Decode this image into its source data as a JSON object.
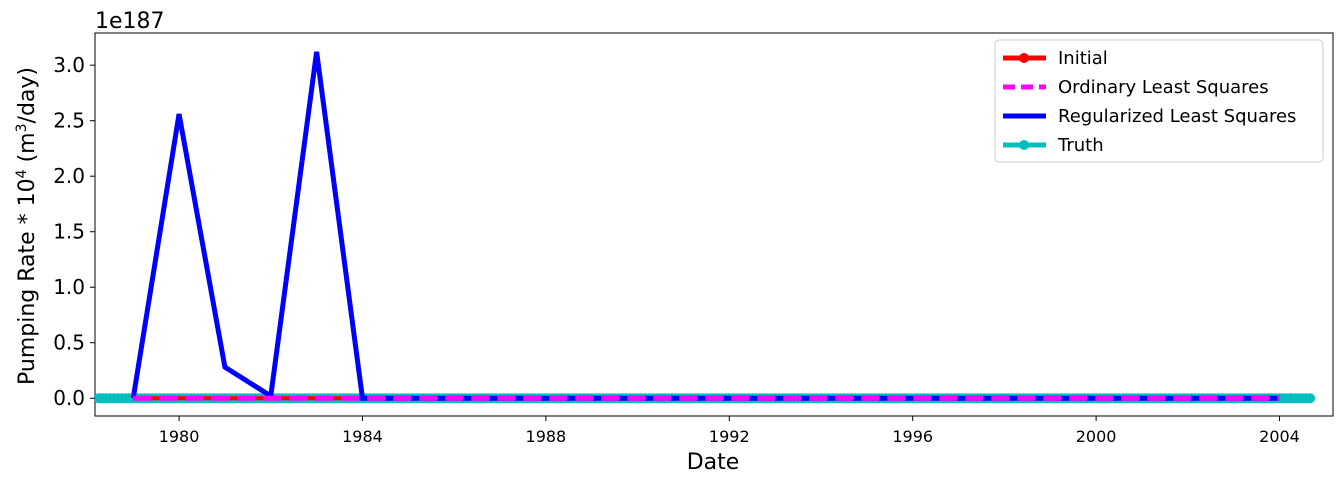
{
  "chart_data": {
    "type": "line",
    "xlabel": "Date",
    "ylabel_pre": "Pumping Rate * 10",
    "ylabel_sup1": "4",
    "ylabel_mid": " (m",
    "ylabel_sup2": "3",
    "ylabel_post": "/day)",
    "y_offset_text": "1e187",
    "xlim": [
      "1978-03",
      "2005-03"
    ],
    "ylim": [
      -0.16,
      3.29
    ],
    "x_ticks": [
      "1980",
      "1984",
      "1988",
      "1992",
      "1996",
      "2000",
      "2004"
    ],
    "y_ticks": [
      "0.0",
      "0.5",
      "1.0",
      "1.5",
      "2.0",
      "2.5",
      "3.0"
    ],
    "legend_position": "upper right",
    "series": [
      {
        "name": "Initial",
        "color": "#ff0000",
        "style": "solid-marker",
        "x": [
          "1979",
          "1980",
          "1981",
          "1982",
          "1983",
          "1984",
          "1985",
          "1986",
          "1987",
          "1988",
          "1989",
          "1990",
          "1991",
          "1992",
          "1993",
          "1994",
          "1995",
          "1996",
          "1997",
          "1998",
          "1999",
          "2000",
          "2001",
          "2002",
          "2003",
          "2004"
        ],
        "values": [
          0,
          0,
          0,
          0,
          0,
          0,
          0,
          0,
          0,
          0,
          0,
          0,
          0,
          0,
          0,
          0,
          0,
          0,
          0,
          0,
          0,
          0,
          0,
          0,
          0,
          0
        ]
      },
      {
        "name": "Ordinary Least Squares",
        "color": "#ff00ff",
        "style": "dashed",
        "x": [
          "1979",
          "1980",
          "1981",
          "1982",
          "1983",
          "1984",
          "1985",
          "1986",
          "1987",
          "1988",
          "1989",
          "1990",
          "1991",
          "1992",
          "1993",
          "1994",
          "1995",
          "1996",
          "1997",
          "1998",
          "1999",
          "2000",
          "2001",
          "2002",
          "2003",
          "2004"
        ],
        "values": [
          0,
          0,
          0,
          0,
          0,
          0,
          0,
          0,
          0,
          0,
          0,
          0,
          0,
          0,
          0,
          0,
          0,
          0,
          0,
          0,
          0,
          0,
          0,
          0,
          0,
          0
        ]
      },
      {
        "name": "Regularized Least Squares",
        "color": "#0000ff",
        "style": "solid",
        "x": [
          "1979",
          "1980",
          "1981",
          "1982",
          "1983",
          "1984",
          "1985",
          "1986",
          "1987",
          "1988",
          "1989",
          "1990",
          "1991",
          "1992",
          "1993",
          "1994",
          "1995",
          "1996",
          "1997",
          "1998",
          "1999",
          "2000",
          "2001",
          "2002",
          "2003",
          "2004"
        ],
        "values": [
          0,
          2.56,
          0.28,
          0.02,
          3.12,
          0,
          0,
          0,
          0,
          0,
          0,
          0,
          0,
          0,
          0,
          0,
          0,
          0,
          0,
          0,
          0,
          0,
          0,
          0,
          0,
          0
        ]
      },
      {
        "name": "Truth",
        "color": "#00bfbf",
        "style": "solid-marker",
        "x_start": "1978-04",
        "x_end": "2004-09",
        "values_constant": 0
      }
    ]
  }
}
